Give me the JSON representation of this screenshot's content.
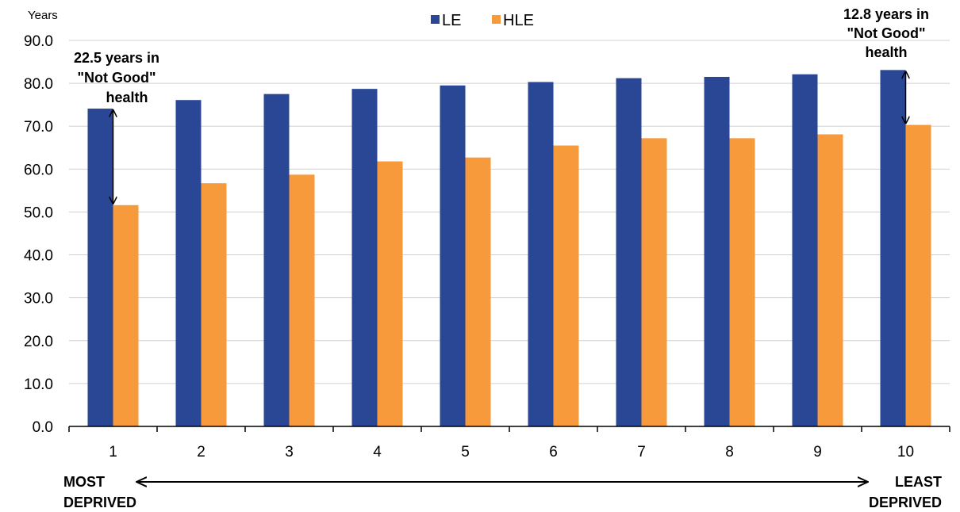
{
  "chart_data": {
    "type": "bar",
    "ylabel": "Years",
    "ylim": [
      0,
      90
    ],
    "yticks": [
      "0.0",
      "10.0",
      "20.0",
      "30.0",
      "40.0",
      "50.0",
      "60.0",
      "70.0",
      "80.0",
      "90.0"
    ],
    "categories": [
      "1",
      "2",
      "3",
      "4",
      "5",
      "6",
      "7",
      "8",
      "9",
      "10"
    ],
    "grid": true,
    "legend_position": "top-center",
    "series": [
      {
        "name": "LE",
        "color": "#2a4795",
        "values": [
          74.1,
          76.1,
          77.5,
          78.7,
          79.5,
          80.3,
          81.2,
          81.5,
          82.1,
          83.1
        ]
      },
      {
        "name": "HLE",
        "color": "#f79a3c",
        "values": [
          51.6,
          56.7,
          58.7,
          61.8,
          62.7,
          65.5,
          67.2,
          67.2,
          68.1,
          70.3
        ]
      }
    ],
    "annotations": {
      "left": {
        "lines": [
          "22.5 years in",
          "\"Not Good\"",
          "health"
        ],
        "category": "1",
        "from": 74.1,
        "to": 51.6
      },
      "right": {
        "lines": [
          "12.8 years in",
          "\"Not Good\"",
          "health"
        ],
        "category": "10",
        "from": 83.1,
        "to": 70.3
      }
    },
    "axis_footer": {
      "left": [
        "MOST",
        "DEPRIVED"
      ],
      "right": [
        "LEAST",
        "DEPRIVED"
      ]
    }
  }
}
